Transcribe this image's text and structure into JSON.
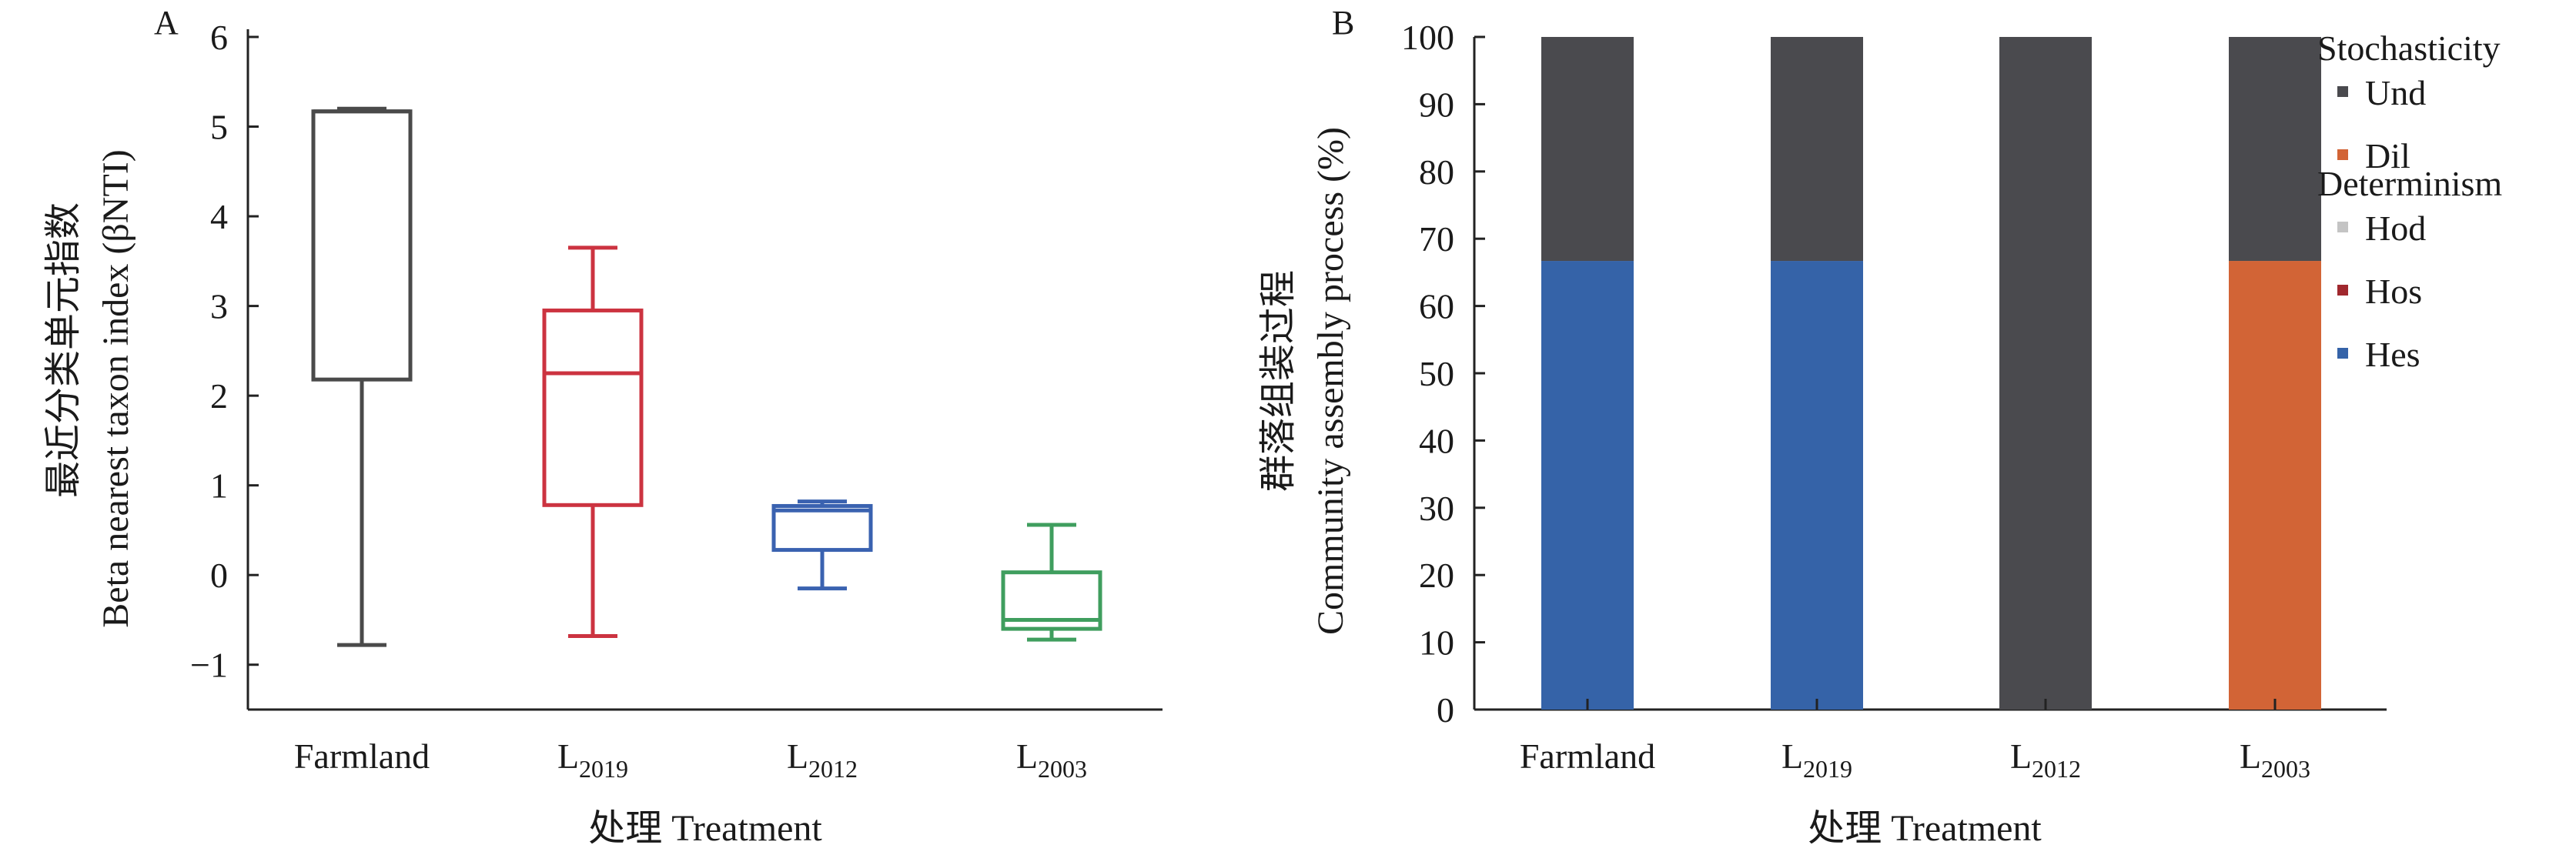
{
  "chart_data": [
    {
      "panel": "A",
      "type": "box",
      "ylabel_cn": "最近分类单元指数",
      "ylabel_en": "Beta nearest taxon index (βNTI)",
      "xlabel": "处理 Treatment",
      "ylim": [
        -1.5,
        6
      ],
      "yticks": [
        {
          "v": -1,
          "label": "−1"
        },
        {
          "v": 0,
          "label": "0"
        },
        {
          "v": 1,
          "label": "1"
        },
        {
          "v": 2,
          "label": "2"
        },
        {
          "v": 3,
          "label": "3"
        },
        {
          "v": 4,
          "label": "4"
        },
        {
          "v": 5,
          "label": "5"
        },
        {
          "v": 6,
          "label": "6"
        }
      ],
      "categories": [
        {
          "base": "Farmland",
          "sub": ""
        },
        {
          "base": "L",
          "sub": "2019"
        },
        {
          "base": "L",
          "sub": "2012"
        },
        {
          "base": "L",
          "sub": "2003"
        }
      ],
      "boxes": [
        {
          "min": -0.78,
          "q1": 2.18,
          "median": 5.17,
          "q3": 5.17,
          "max": 5.2,
          "color": "#4a4a4a"
        },
        {
          "min": -0.68,
          "q1": 0.78,
          "median": 2.25,
          "q3": 2.95,
          "max": 3.65,
          "color": "#cc3340"
        },
        {
          "min": -0.15,
          "q1": 0.28,
          "median": 0.72,
          "q3": 0.77,
          "max": 0.82,
          "color": "#3a62b0"
        },
        {
          "min": -0.72,
          "q1": -0.6,
          "median": -0.5,
          "q3": 0.03,
          "max": 0.56,
          "color": "#3f9e5e"
        }
      ]
    },
    {
      "panel": "B",
      "type": "bar",
      "stacked": true,
      "ylabel_cn": "群落组装过程",
      "ylabel_en": "Community assembly process (%)",
      "xlabel": "处理 Treatment",
      "ylim": [
        0,
        100
      ],
      "yticks": [
        0,
        10,
        20,
        30,
        40,
        50,
        60,
        70,
        80,
        90,
        100
      ],
      "categories": [
        {
          "base": "Farmland",
          "sub": ""
        },
        {
          "base": "L",
          "sub": "2019"
        },
        {
          "base": "L",
          "sub": "2012"
        },
        {
          "base": "L",
          "sub": "2003"
        }
      ],
      "series": [
        {
          "name": "Hes",
          "color": "#3563a8",
          "values": [
            66.7,
            66.7,
            0,
            0
          ]
        },
        {
          "name": "Hos",
          "color": "#a0282e",
          "values": [
            0,
            0,
            0,
            0
          ]
        },
        {
          "name": "Hod",
          "color": "#c4c4c4",
          "values": [
            0,
            0,
            0,
            0
          ]
        },
        {
          "name": "Dil",
          "color": "#d26436",
          "values": [
            0,
            0,
            0,
            66.7
          ]
        },
        {
          "name": "Und",
          "color": "#4a4a4e",
          "values": [
            33.3,
            33.3,
            100,
            33.3
          ]
        }
      ],
      "legend": {
        "placement": "right",
        "groups": [
          {
            "title": "Stochasticity",
            "items": [
              "Und",
              "Dil"
            ]
          },
          {
            "title": "Determinism",
            "items": [
              "Hod",
              "Hos",
              "Hes"
            ]
          }
        ]
      }
    }
  ],
  "panel_labels": [
    "A",
    "B"
  ]
}
